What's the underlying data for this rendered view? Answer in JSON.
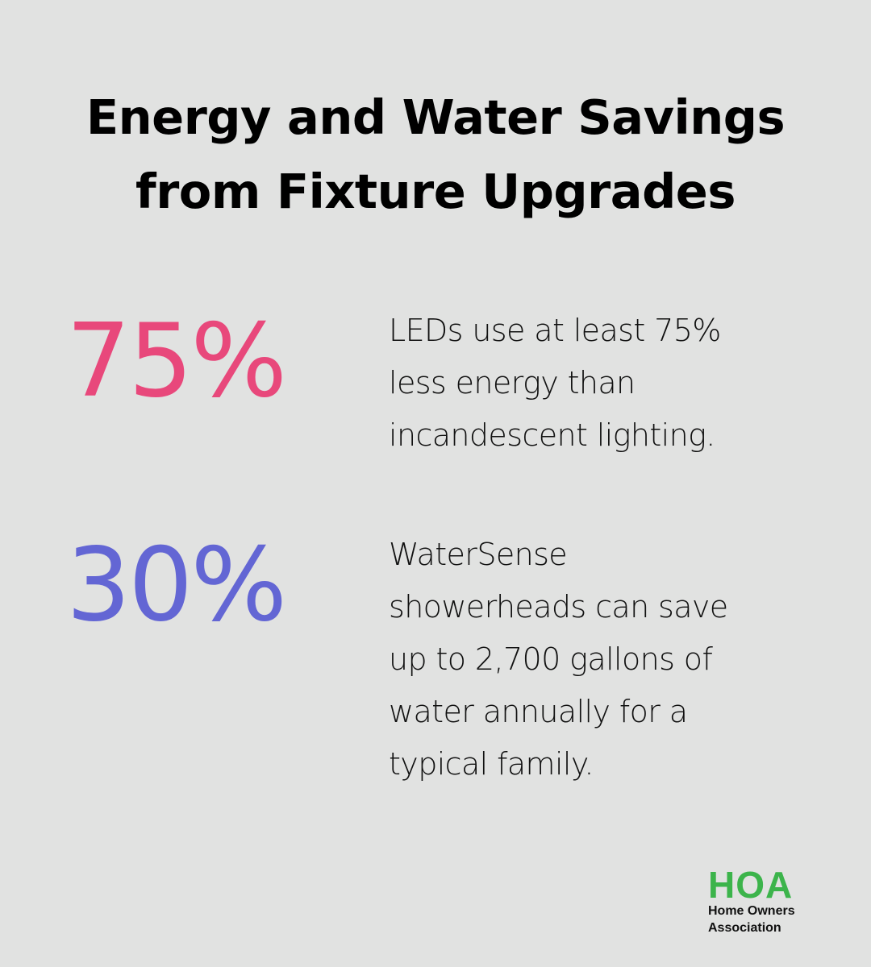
{
  "title": {
    "line1": "Energy and Water Savings",
    "line2": "from Fixture Upgrades"
  },
  "colors": {
    "background": "#e1e2e1",
    "stat_1": "#e8487b",
    "stat_2": "#6366d4",
    "logo_green": "#3cb44b"
  },
  "stats": [
    {
      "value": "75%",
      "lines": [
        "LEDs use at least 75%",
        "less energy than",
        "incandescent lighting."
      ]
    },
    {
      "value": "30%",
      "lines": [
        "WaterSense",
        "showerheads can save",
        "up to 2,700 gallons of",
        "water annually for a",
        "typical family."
      ]
    }
  ],
  "logo": {
    "mark": "HOA",
    "line1": "Home Owners",
    "line2": "Association"
  }
}
